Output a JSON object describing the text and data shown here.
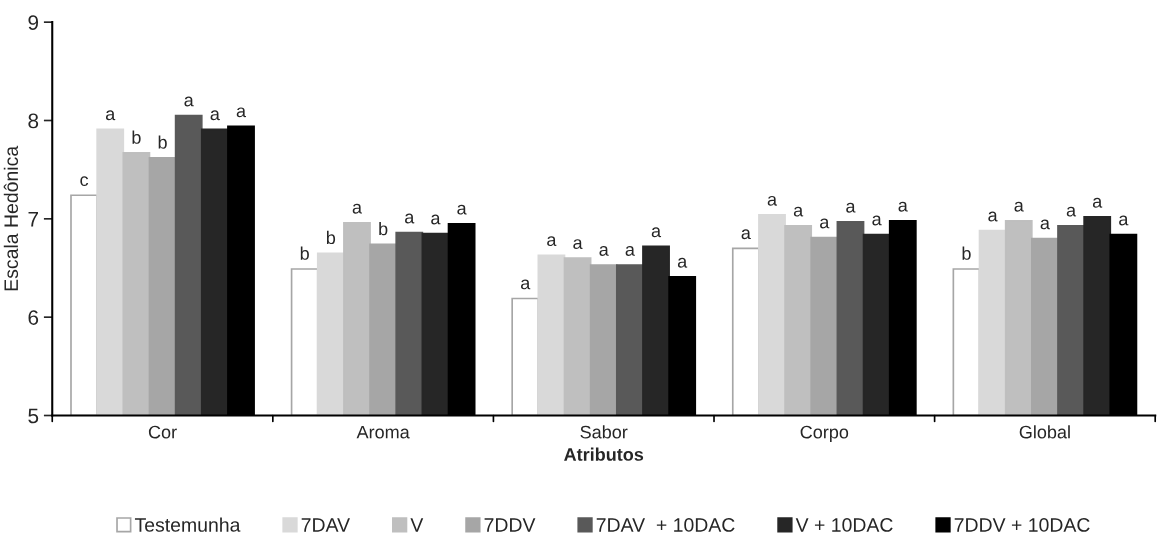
{
  "chart_data": {
    "type": "bar",
    "xlabel": "Atributos",
    "ylabel": "Escala Hedônica",
    "categories": [
      "Cor",
      "Aroma",
      "Sabor",
      "Corpo",
      "Global"
    ],
    "ylim": [
      5,
      9
    ],
    "yticks": [
      5,
      6,
      7,
      8,
      9
    ],
    "grid": false,
    "legend": "bottom",
    "series": [
      {
        "name": "Testemunha",
        "color": "#ffffff",
        "values": [
          7.24,
          6.49,
          6.19,
          6.7,
          6.49
        ],
        "value_labels": [
          "c",
          "b",
          "a",
          "a",
          "b"
        ]
      },
      {
        "name": "7DAV",
        "color": "#d9d9d9",
        "values": [
          7.91,
          6.65,
          6.63,
          7.04,
          6.88
        ],
        "value_labels": [
          "a",
          "b",
          "a",
          "a",
          "a"
        ]
      },
      {
        "name": "V",
        "color": "#bfbfbf",
        "values": [
          7.67,
          6.96,
          6.6,
          6.93,
          6.98
        ],
        "value_labels": [
          "b",
          "a",
          "a",
          "a",
          "a"
        ]
      },
      {
        "name": "7DDV",
        "color": "#a6a6a6",
        "values": [
          7.62,
          6.74,
          6.53,
          6.81,
          6.8
        ],
        "value_labels": [
          "b",
          "b",
          "a",
          "a",
          "a"
        ]
      },
      {
        "name": "7DAV  + 10DAC",
        "color": "#595959",
        "values": [
          8.05,
          6.86,
          6.53,
          6.97,
          6.93
        ],
        "value_labels": [
          "a",
          "a",
          "a",
          "a",
          "a"
        ]
      },
      {
        "name": "V + 10DAC",
        "color": "#262626",
        "values": [
          7.91,
          6.85,
          6.72,
          6.84,
          7.02
        ],
        "value_labels": [
          "a",
          "a",
          "a",
          "a",
          "a"
        ]
      },
      {
        "name": "7DDV + 10DAC",
        "color": "#000000",
        "values": [
          7.94,
          6.95,
          6.41,
          6.98,
          6.84
        ],
        "value_labels": [
          "a",
          "a",
          "a",
          "a",
          "a"
        ]
      }
    ]
  }
}
